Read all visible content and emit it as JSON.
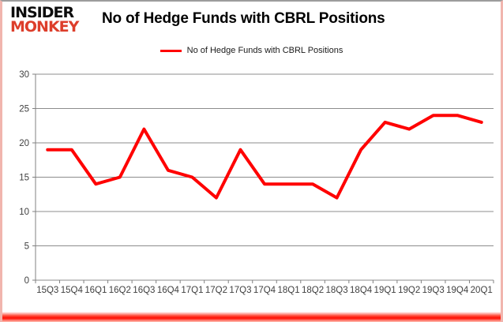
{
  "logo": {
    "line1": "INSIDER",
    "line2": "MONKEY",
    "line2_color": "#dd3e2b"
  },
  "title": "No of Hedge Funds with CBRL Positions",
  "legend": {
    "label": "No of Hedge Funds with CBRL Positions",
    "swatch_color": "#ff0000"
  },
  "chart_data": {
    "type": "line",
    "title": "No of Hedge Funds with CBRL Positions",
    "categories": [
      "15Q3",
      "15Q4",
      "16Q1",
      "16Q2",
      "16Q3",
      "16Q4",
      "17Q1",
      "17Q2",
      "17Q3",
      "17Q4",
      "18Q1",
      "18Q2",
      "18Q3",
      "18Q4",
      "19Q1",
      "19Q2",
      "19Q3",
      "19Q4",
      "20Q1"
    ],
    "series": [
      {
        "name": "No of Hedge Funds with CBRL Positions",
        "color": "#ff0000",
        "values": [
          19,
          19,
          14,
          15,
          22,
          16,
          15,
          12,
          19,
          14,
          14,
          14,
          12,
          19,
          23,
          22,
          24,
          24,
          23
        ]
      }
    ],
    "xlabel": "",
    "ylabel": "",
    "ylim": [
      0,
      30
    ],
    "ytick_interval": 5,
    "grid": true,
    "legend_position": "top",
    "colors": {
      "gridline": "#8c8c8c",
      "axis": "#808080",
      "tick_label": "#404040"
    }
  }
}
